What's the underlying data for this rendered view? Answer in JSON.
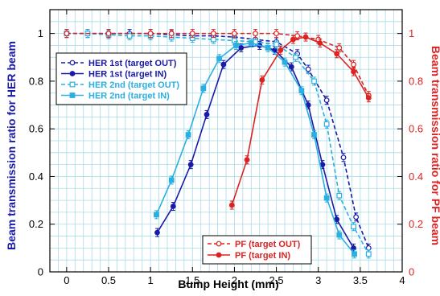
{
  "chart_data": {
    "type": "line",
    "xlabel": "Bump Height (mm)",
    "ylabel_left": "Beam transmission ratio for HER beam",
    "ylabel_right": "Beam transmission ratio for PF beam",
    "xlim": [
      -0.2,
      4.0
    ],
    "ylim_left": [
      0,
      1.1
    ],
    "ylim_right": [
      0,
      1.1
    ],
    "x_ticks": [
      "0",
      "0.5",
      "1",
      "1.5",
      "2",
      "2.5",
      "3",
      "3.5",
      "4"
    ],
    "y_ticks_left": [
      "0",
      "0.2",
      "0.4",
      "0.6",
      "0.8",
      "1"
    ],
    "y_ticks_right": [
      "0",
      "0.2",
      "0.4",
      "0.6",
      "0.8",
      "1"
    ],
    "grid": true,
    "colors": {
      "her1": "#1a1aa8",
      "her2": "#2ab0e0",
      "pf": "#dd2222",
      "grid": "#a8dce6",
      "left_axis_title": "#1a1aa8",
      "right_axis_title": "#dd2222"
    },
    "series": [
      {
        "name": "HER 1st (target OUT)",
        "axis": "left",
        "color_key": "her1",
        "dash": "dash",
        "marker": "open-circle",
        "points": [
          [
            0,
            1.0
          ],
          [
            0.25,
            1.0
          ],
          [
            0.5,
            1.0
          ],
          [
            0.75,
            1.0
          ],
          [
            1.0,
            1.0
          ],
          [
            1.25,
            0.995
          ],
          [
            1.5,
            0.99
          ],
          [
            1.75,
            0.99
          ],
          [
            2.0,
            0.985
          ],
          [
            2.25,
            0.975
          ],
          [
            2.5,
            0.965
          ],
          [
            2.75,
            0.915
          ],
          [
            2.88,
            0.85
          ],
          [
            3.1,
            0.72
          ],
          [
            3.3,
            0.48
          ],
          [
            3.45,
            0.23
          ],
          [
            3.6,
            0.1
          ]
        ]
      },
      {
        "name": "HER 1st (target IN)",
        "axis": "left",
        "color_key": "her1",
        "dash": "solid",
        "marker": "filled-circle",
        "points": [
          [
            1.08,
            0.165
          ],
          [
            1.27,
            0.275
          ],
          [
            1.48,
            0.45
          ],
          [
            1.67,
            0.66
          ],
          [
            1.87,
            0.87
          ],
          [
            2.08,
            0.94
          ],
          [
            2.3,
            0.95
          ],
          [
            2.48,
            0.93
          ],
          [
            2.68,
            0.86
          ],
          [
            2.88,
            0.7
          ],
          [
            3.05,
            0.45
          ],
          [
            3.22,
            0.22
          ],
          [
            3.42,
            0.1
          ]
        ]
      },
      {
        "name": "HER 2nd (target OUT)",
        "axis": "left",
        "color_key": "her2",
        "dash": "dash",
        "marker": "open-square",
        "points": [
          [
            0,
            1.0
          ],
          [
            0.25,
            1.0
          ],
          [
            0.5,
            0.995
          ],
          [
            0.75,
            0.99
          ],
          [
            1.0,
            0.99
          ],
          [
            1.25,
            0.985
          ],
          [
            1.5,
            0.98
          ],
          [
            1.75,
            0.975
          ],
          [
            2.0,
            0.97
          ],
          [
            2.25,
            0.965
          ],
          [
            2.5,
            0.955
          ],
          [
            2.73,
            0.9
          ],
          [
            2.95,
            0.8
          ],
          [
            3.1,
            0.62
          ],
          [
            3.25,
            0.32
          ],
          [
            3.42,
            0.19
          ],
          [
            3.6,
            0.075
          ]
        ]
      },
      {
        "name": "HER 2nd (target IN)",
        "axis": "left",
        "color_key": "her2",
        "dash": "solid",
        "marker": "filled-square",
        "points": [
          [
            1.07,
            0.24
          ],
          [
            1.25,
            0.385
          ],
          [
            1.45,
            0.575
          ],
          [
            1.63,
            0.77
          ],
          [
            1.82,
            0.895
          ],
          [
            2.02,
            0.95
          ],
          [
            2.2,
            0.96
          ],
          [
            2.4,
            0.94
          ],
          [
            2.6,
            0.88
          ],
          [
            2.8,
            0.76
          ],
          [
            2.95,
            0.575
          ],
          [
            3.1,
            0.31
          ],
          [
            3.25,
            0.155
          ],
          [
            3.43,
            0.075
          ]
        ]
      },
      {
        "name": "PF (target OUT)",
        "axis": "right",
        "color_key": "pf",
        "dash": "dash",
        "marker": "open-circle",
        "points": [
          [
            0,
            1.0
          ],
          [
            0.5,
            1.0
          ],
          [
            1.0,
            1.0
          ],
          [
            1.25,
            1.0
          ],
          [
            1.5,
            1.0
          ],
          [
            1.75,
            1.0
          ],
          [
            2.0,
            1.0
          ],
          [
            2.25,
            1.0
          ],
          [
            2.5,
            1.0
          ],
          [
            2.75,
            0.99
          ],
          [
            3.0,
            0.975
          ],
          [
            3.25,
            0.94
          ],
          [
            3.42,
            0.87
          ],
          [
            3.6,
            0.74
          ]
        ]
      },
      {
        "name": "PF (target IN)",
        "axis": "right",
        "color_key": "pf",
        "dash": "solid",
        "marker": "filled-circle",
        "points": [
          [
            1.97,
            0.28
          ],
          [
            2.15,
            0.47
          ],
          [
            2.33,
            0.805
          ],
          [
            2.55,
            0.93
          ],
          [
            2.7,
            0.975
          ],
          [
            2.85,
            0.985
          ],
          [
            3.02,
            0.96
          ],
          [
            3.22,
            0.915
          ],
          [
            3.42,
            0.84
          ],
          [
            3.6,
            0.73
          ]
        ]
      }
    ],
    "legends": [
      {
        "position": "upper-left",
        "entries": [
          0,
          1,
          2,
          3
        ]
      },
      {
        "position": "lower-right",
        "entries": [
          4,
          5
        ]
      }
    ]
  }
}
